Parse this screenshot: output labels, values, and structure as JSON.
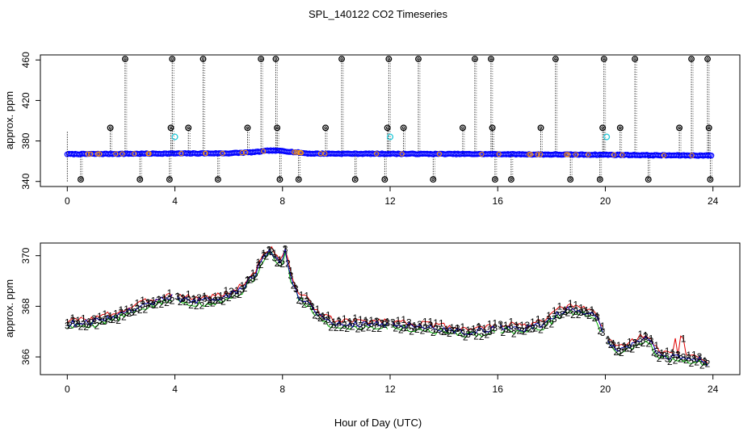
{
  "figure_title": "SPL_140122  CO2 Timeseries",
  "xlabel": "Hour of Day (UTC)",
  "colors": {
    "blue": "#0000ff",
    "cyan": "#20c8d8",
    "black": "#000000",
    "red": "#e00000",
    "green": "#00b000",
    "navy": "#0000aa",
    "orange": "#ff9900"
  },
  "chart_data": [
    {
      "type": "scatter",
      "title": "",
      "ylabel": "approx. ppm",
      "xlim": [
        -1,
        25
      ],
      "ylim": [
        335,
        465
      ],
      "xticks": [
        0,
        4,
        8,
        12,
        16,
        20,
        24
      ],
      "yticks": [
        340,
        380,
        420,
        460
      ],
      "baseline": [
        [
          0,
          367.0
        ],
        [
          2,
          367.3
        ],
        [
          4,
          367.6
        ],
        [
          6,
          367.8
        ],
        [
          7,
          369.0
        ],
        [
          7.5,
          370.5
        ],
        [
          8,
          370.2
        ],
        [
          8.3,
          369.3
        ],
        [
          9,
          367.5
        ],
        [
          12,
          367.3
        ],
        [
          16,
          367.0
        ],
        [
          18,
          366.6
        ],
        [
          20,
          366.4
        ],
        [
          22,
          365.8
        ],
        [
          24,
          365.6
        ]
      ],
      "high_spikes_x": [
        2.15,
        3.9,
        5.05,
        7.2,
        7.75,
        10.2,
        11.95,
        13.05,
        15.15,
        15.75,
        18.15,
        19.95,
        21.1,
        23.2,
        23.8
      ],
      "mid_spikes_x": [
        1.6,
        3.85,
        4.5,
        6.7,
        7.8,
        9.6,
        11.9,
        12.5,
        14.7,
        15.8,
        17.6,
        19.9,
        20.55,
        22.75,
        23.85
      ],
      "low_spikes_x": [
        0.5,
        2.7,
        3.8,
        5.6,
        7.9,
        8.6,
        10.7,
        11.8,
        13.6,
        15.9,
        16.5,
        18.7,
        19.8,
        21.6,
        23.9
      ],
      "cyan_points": [
        [
          4.0,
          384
        ],
        [
          12.0,
          384
        ],
        [
          20.05,
          384
        ]
      ],
      "high_value": 461,
      "mid_value": 393,
      "low_value": 342,
      "series": [
        {
          "name": "blue",
          "color": "#0000ff"
        },
        {
          "name": "cyan",
          "color": "#20c8d8"
        },
        {
          "name": "outliers",
          "color": "#000000"
        }
      ]
    },
    {
      "type": "line",
      "title": "",
      "ylabel": "approx. ppm",
      "xlim": [
        -1,
        25
      ],
      "ylim": [
        365.3,
        370.5
      ],
      "xticks": [
        0,
        4,
        8,
        12,
        16,
        20,
        24
      ],
      "yticks": [
        366,
        368,
        370
      ],
      "gaps": [
        [
          3.95,
          4.05
        ],
        [
          11.95,
          12.05
        ],
        [
          15.95,
          16.05
        ],
        [
          19.95,
          20.05
        ]
      ],
      "keypoints": [
        [
          0,
          367.3
        ],
        [
          1,
          367.4
        ],
        [
          2,
          367.7
        ],
        [
          3,
          368.1
        ],
        [
          3.95,
          368.4
        ],
        [
          4.05,
          368.3
        ],
        [
          5,
          368.2
        ],
        [
          6,
          368.4
        ],
        [
          6.5,
          368.7
        ],
        [
          7,
          369.3
        ],
        [
          7.3,
          370.0
        ],
        [
          7.6,
          370.2
        ],
        [
          7.9,
          369.6
        ],
        [
          8.1,
          370.2
        ],
        [
          8.3,
          369.2
        ],
        [
          8.6,
          368.4
        ],
        [
          9,
          368.1
        ],
        [
          9.5,
          367.5
        ],
        [
          10,
          367.3
        ],
        [
          11.95,
          367.3
        ],
        [
          12.05,
          367.3
        ],
        [
          13,
          367.2
        ],
        [
          14,
          367.1
        ],
        [
          15,
          367.0
        ],
        [
          15.95,
          367.1
        ],
        [
          16.05,
          367.2
        ],
        [
          17,
          367.1
        ],
        [
          17.7,
          367.3
        ],
        [
          18.2,
          367.7
        ],
        [
          18.6,
          367.9
        ],
        [
          19.2,
          367.8
        ],
        [
          19.6,
          367.7
        ],
        [
          19.95,
          366.9
        ],
        [
          20.05,
          366.6
        ],
        [
          20.5,
          366.3
        ],
        [
          21,
          366.5
        ],
        [
          21.5,
          366.8
        ],
        [
          22,
          366.1
        ],
        [
          22.5,
          366.0
        ],
        [
          23,
          365.9
        ],
        [
          23.5,
          365.9
        ],
        [
          23.9,
          365.7
        ]
      ],
      "series": [
        {
          "name": "1",
          "label": "1",
          "color": "#e00000"
        },
        {
          "name": "2",
          "label": "2",
          "color": "#00b000"
        },
        {
          "name": "3",
          "label": "3",
          "color": "#0000aa"
        }
      ]
    }
  ]
}
